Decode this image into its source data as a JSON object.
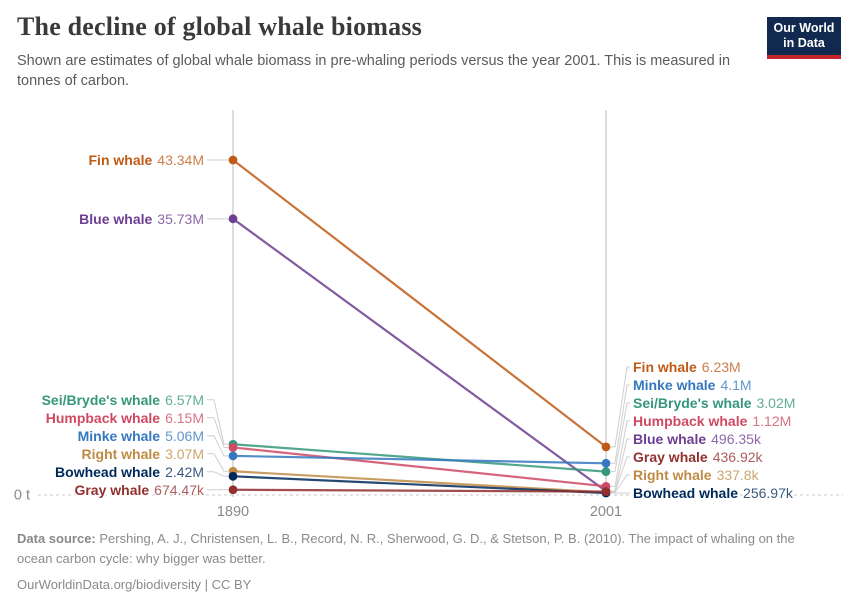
{
  "header": {
    "title": "The decline of global whale biomass",
    "subtitle": "Shown are estimates of global whale biomass in pre-whaling periods versus the year 2001. This is measured in tonnes of carbon.",
    "logo": {
      "line1": "Our World",
      "line2": "in Data",
      "bg_color": "#12294F",
      "accent_color": "#C5262C"
    }
  },
  "chart_data": {
    "type": "line",
    "variant": "slope-chart",
    "title": "The decline of global whale biomass",
    "unit": "tonnes of carbon",
    "x_categories": [
      "1890",
      "2001"
    ],
    "y_zero_label": "0 t",
    "ylim": [
      0,
      49800000
    ],
    "grid": "vertical line per year, dashed zero line",
    "legend_position": "inline-labels",
    "series": [
      {
        "name": "Fin whale",
        "color": "#BF5A17",
        "values": [
          43340000,
          6230000
        ],
        "value_labels": [
          "43.34M",
          "6.23M"
        ]
      },
      {
        "name": "Blue whale",
        "color": "#6D3E91",
        "values": [
          35730000,
          496350
        ],
        "value_labels": [
          "35.73M",
          "496.35k"
        ]
      },
      {
        "name": "Sei/Bryde's whale",
        "color": "#35977B",
        "values": [
          6570000,
          3020000
        ],
        "value_labels": [
          "6.57M",
          "3.02M"
        ]
      },
      {
        "name": "Humpback whale",
        "color": "#CE4A63",
        "values": [
          6150000,
          1120000
        ],
        "value_labels": [
          "6.15M",
          "1.12M"
        ]
      },
      {
        "name": "Minke whale",
        "color": "#3578BF",
        "values": [
          5060000,
          4100000
        ],
        "value_labels": [
          "5.06M",
          "4.1M"
        ]
      },
      {
        "name": "Right whale",
        "color": "#BF8B45",
        "values": [
          3070000,
          337800
        ],
        "value_labels": [
          "3.07M",
          "337.8k"
        ]
      },
      {
        "name": "Bowhead whale",
        "color": "#00295B",
        "values": [
          2420000,
          256970
        ],
        "value_labels": [
          "2.42M",
          "256.97k"
        ]
      },
      {
        "name": "Gray whale",
        "color": "#932F2F",
        "values": [
          674470,
          436920
        ],
        "value_labels": [
          "674.47k",
          "436.92k"
        ]
      }
    ]
  },
  "footer": {
    "source_label": "Data source:",
    "source_text": " Pershing, A. J., Christensen, L. B., Record, N. R., Sherwood, G. D., & Stetson, P. B. (2010). The impact of whaling on the ocean carbon cycle: why bigger was better.",
    "link_text": "OurWorldinData.org/biodiversity | CC BY"
  }
}
